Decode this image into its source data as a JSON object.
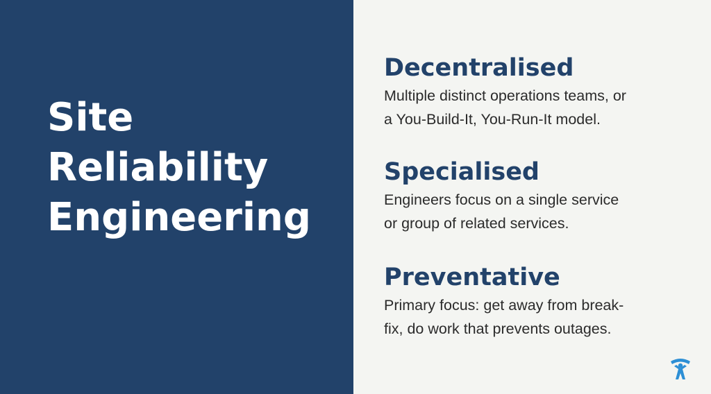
{
  "slide": {
    "title_lines": [
      "Site",
      "Reliability",
      "Engineering"
    ],
    "sections": [
      {
        "heading": "Decentralised",
        "body_lines": [
          "Multiple distinct operations teams, or",
          "a You-Build-It, You-Run-It model."
        ]
      },
      {
        "heading": "Specialised",
        "body_lines": [
          "Engineers focus on a single service",
          "or group of related services."
        ]
      },
      {
        "heading": "Preventative",
        "body_lines": [
          "Primary focus: get away from break-",
          "fix, do work that prevents outages."
        ]
      }
    ],
    "logo_icon": "atlassian-team-icon"
  },
  "colors": {
    "left_panel": "#22426a",
    "right_panel": "#f4f5f2",
    "heading": "#22426a",
    "body_text": "#2b2b2b",
    "logo": "#2d8fd5"
  }
}
